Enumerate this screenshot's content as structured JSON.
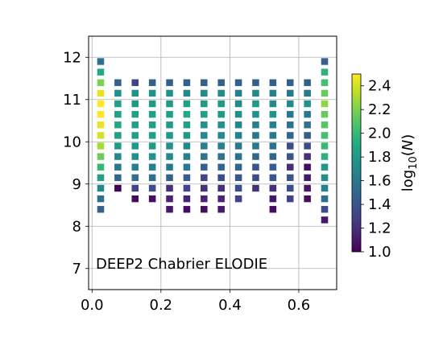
{
  "chart_data": {
    "type": "heatmap",
    "annotation": "DEEP2 Chabrier ELODIE",
    "xlim": [
      -0.01,
      0.71
    ],
    "ylim": [
      6.5,
      12.5
    ],
    "xticks": [
      0.0,
      0.2,
      0.4,
      0.6
    ],
    "xtick_labels": [
      "0.0",
      "0.2",
      "0.4",
      "0.6"
    ],
    "yticks": [
      7,
      8,
      9,
      10,
      11,
      12
    ],
    "ytick_labels": [
      "7",
      "8",
      "9",
      "10",
      "11",
      "12"
    ],
    "grid": true,
    "colorbar": {
      "label": "log10(N)",
      "vmin": 1.0,
      "vmax": 2.5,
      "ticks": [
        1.0,
        1.2,
        1.4,
        1.6,
        1.8,
        2.0,
        2.2,
        2.4
      ],
      "tick_labels": [
        "1.0",
        "1.2",
        "1.4",
        "1.6",
        "1.8",
        "2.0",
        "2.2",
        "2.4"
      ]
    },
    "cell_size": [
      0.02,
      0.16
    ],
    "columns": [
      {
        "x": 0.025,
        "y0": 8.4,
        "values": [
          1.45,
          1.55,
          1.7,
          1.85,
          2.0,
          2.15,
          2.3,
          2.4,
          2.45,
          2.5,
          2.5,
          2.45,
          2.2,
          1.9,
          1.55
        ]
      },
      {
        "x": 0.075,
        "y0": 8.9,
        "values": [
          1.0,
          1.5,
          1.6,
          1.7,
          1.8,
          1.85,
          1.9,
          1.85,
          1.85,
          1.75,
          1.45
        ]
      },
      {
        "x": 0.125,
        "y0": 8.65,
        "values": [
          1.05,
          1.3,
          1.55,
          1.65,
          1.75,
          1.8,
          1.85,
          1.85,
          1.85,
          1.8,
          1.75,
          1.3
        ]
      },
      {
        "x": 0.175,
        "y0": 8.65,
        "values": [
          1.05,
          1.35,
          1.55,
          1.65,
          1.75,
          1.8,
          1.85,
          1.85,
          1.85,
          1.8,
          1.75,
          1.45
        ]
      },
      {
        "x": 0.225,
        "y0": 8.4,
        "values": [
          1.1,
          1.15,
          1.2,
          1.45,
          1.6,
          1.7,
          1.75,
          1.8,
          1.8,
          1.85,
          1.8,
          1.75,
          1.45
        ]
      },
      {
        "x": 0.275,
        "y0": 8.4,
        "values": [
          1.05,
          1.15,
          1.3,
          1.45,
          1.6,
          1.65,
          1.7,
          1.8,
          1.85,
          1.9,
          1.85,
          1.7,
          1.45
        ]
      },
      {
        "x": 0.325,
        "y0": 8.4,
        "values": [
          1.05,
          1.15,
          1.2,
          1.3,
          1.45,
          1.55,
          1.65,
          1.7,
          1.75,
          1.85,
          1.8,
          1.7,
          1.45
        ]
      },
      {
        "x": 0.375,
        "y0": 8.4,
        "values": [
          1.1,
          1.15,
          1.2,
          1.35,
          1.5,
          1.55,
          1.65,
          1.7,
          1.75,
          1.8,
          1.8,
          1.7,
          1.45
        ]
      },
      {
        "x": 0.425,
        "y0": 8.65,
        "values": [
          1.3,
          1.35,
          1.4,
          1.5,
          1.55,
          1.6,
          1.65,
          1.7,
          1.75,
          1.7,
          1.65,
          1.45
        ]
      },
      {
        "x": 0.475,
        "y0": 8.9,
        "values": [
          1.2,
          1.35,
          1.4,
          1.5,
          1.6,
          1.6,
          1.65,
          1.75,
          1.8,
          1.7,
          1.45
        ]
      },
      {
        "x": 0.525,
        "y0": 8.4,
        "values": [
          1.05,
          1.1,
          1.2,
          1.4,
          1.45,
          1.5,
          1.55,
          1.6,
          1.65,
          1.75,
          1.7,
          1.65,
          1.45
        ]
      },
      {
        "x": 0.575,
        "y0": 8.65,
        "values": [
          1.3,
          1.35,
          1.4,
          1.2,
          1.4,
          1.35,
          1.5,
          1.55,
          1.6,
          1.7,
          1.6,
          1.45
        ]
      },
      {
        "x": 0.625,
        "y0": 8.65,
        "values": [
          1.05,
          1.1,
          1.1,
          1.05,
          1.2,
          1.35,
          1.45,
          1.55,
          1.6,
          1.75,
          1.6,
          1.45
        ]
      },
      {
        "x": 0.675,
        "y0": 8.15,
        "values": [
          1.1,
          1.35,
          1.55,
          1.65,
          1.75,
          1.8,
          1.95,
          2.0,
          2.05,
          2.1,
          2.15,
          2.25,
          2.15,
          2.05,
          1.95,
          1.45
        ]
      }
    ]
  }
}
